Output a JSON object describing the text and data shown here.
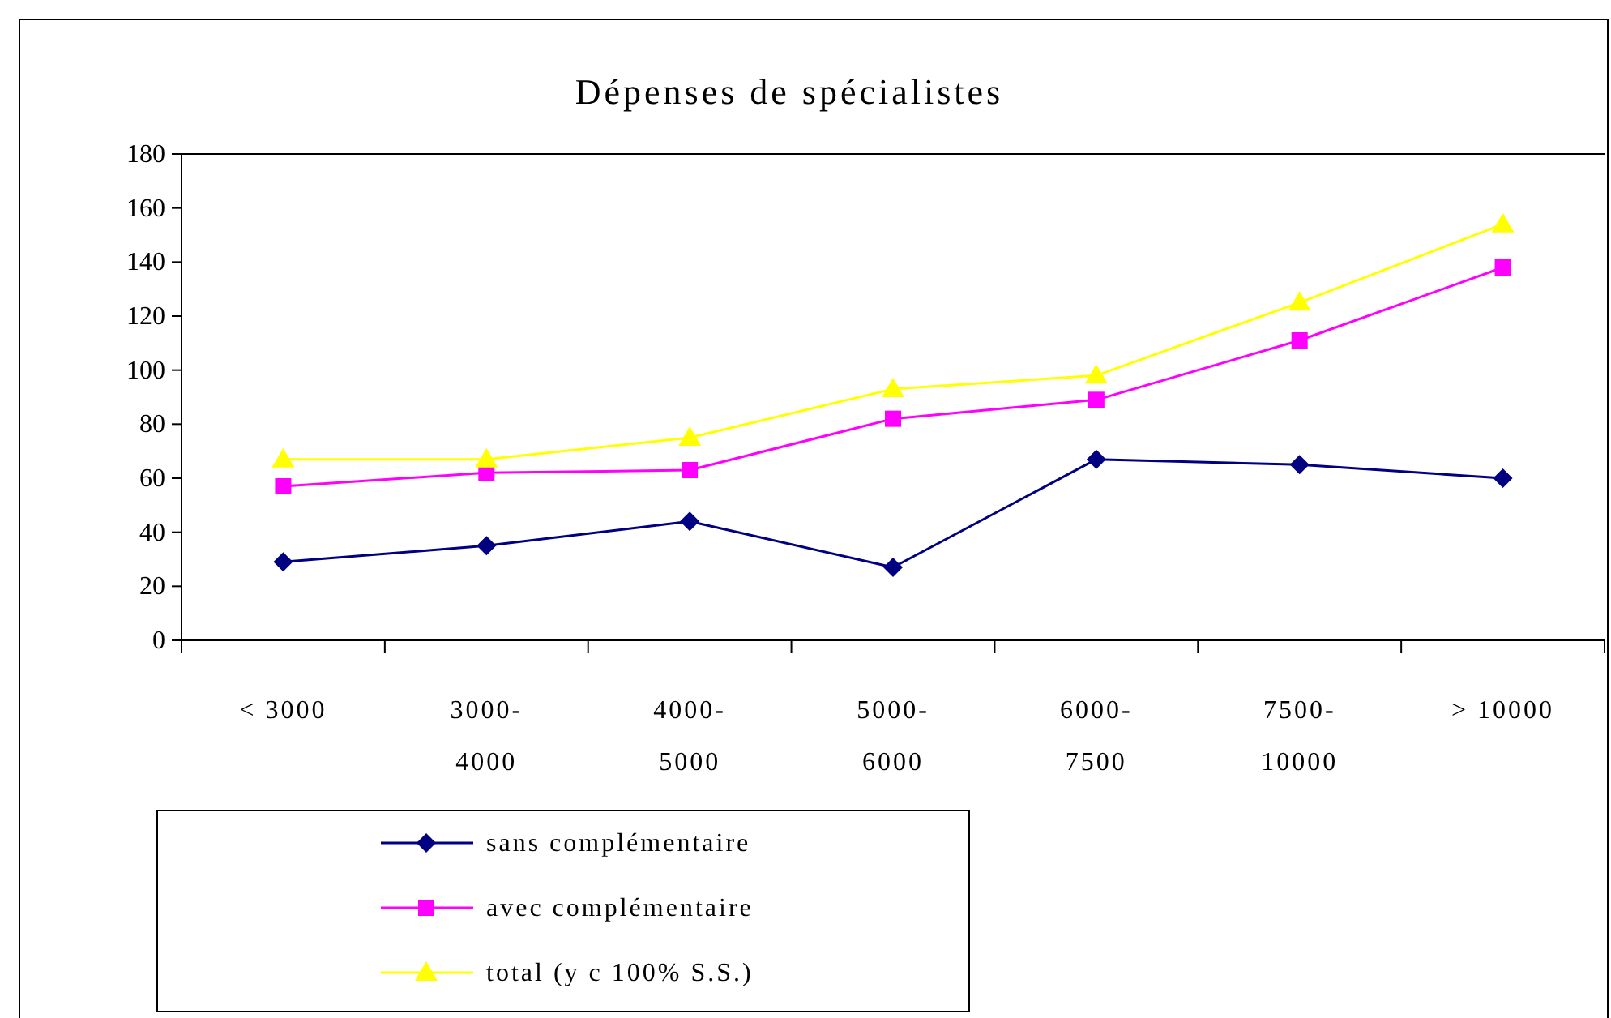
{
  "chart_data": {
    "type": "line",
    "title": "Dépenses de spécialistes",
    "categories": [
      "< 3000",
      "3000-4000",
      "4000-5000",
      "5000-6000",
      "6000-7500",
      "7500-10000",
      "> 10000"
    ],
    "ylim": [
      0,
      180
    ],
    "yticks": [
      0,
      20,
      40,
      60,
      80,
      100,
      120,
      140,
      160,
      180
    ],
    "legend": "bottom",
    "grid": false,
    "series": [
      {
        "name": "sans complémentaire",
        "color": "#000080",
        "marker": "diamond",
        "values": [
          29,
          35,
          44,
          27,
          67,
          65,
          60
        ]
      },
      {
        "name": "avec complémentaire",
        "color": "#ff00ff",
        "marker": "square",
        "values": [
          57,
          62,
          63,
          82,
          89,
          111,
          138
        ]
      },
      {
        "name": "total (y c 100% S.S.)",
        "color": "#ffff00",
        "marker": "triangle",
        "values": [
          67,
          67,
          75,
          93,
          98,
          125,
          154
        ]
      }
    ]
  }
}
